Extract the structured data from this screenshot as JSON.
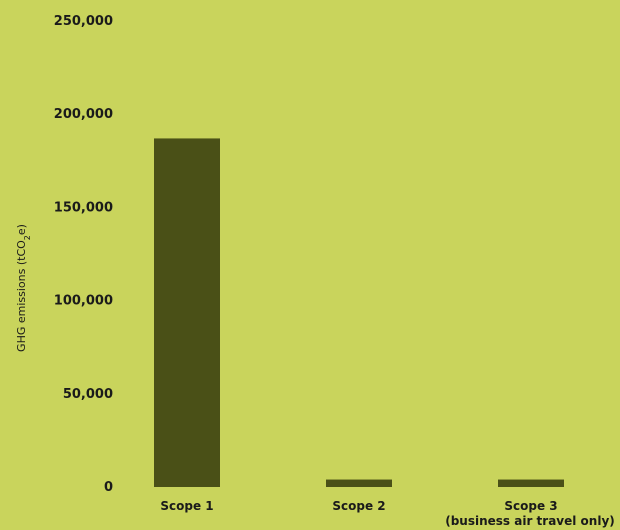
{
  "chart_data": {
    "type": "bar",
    "categories": [
      "Scope 1",
      "Scope 2",
      "Scope 3"
    ],
    "category_sublabels": [
      "",
      "",
      "(business air travel only)"
    ],
    "values": [
      187000,
      4000,
      4000
    ],
    "ylabel_main": "GHG emissions (tCO",
    "ylabel_sub": "2",
    "ylabel_tail": "e)",
    "ylim": [
      0,
      250000
    ],
    "yticks": [
      0,
      50000,
      100000,
      150000,
      200000,
      250000
    ],
    "ytick_labels": [
      "0",
      "50,000",
      "100,000",
      "150,000",
      "200,000",
      "250,000"
    ],
    "grid": false,
    "bar_color": "#4a5017",
    "background": "#c9d45c"
  }
}
